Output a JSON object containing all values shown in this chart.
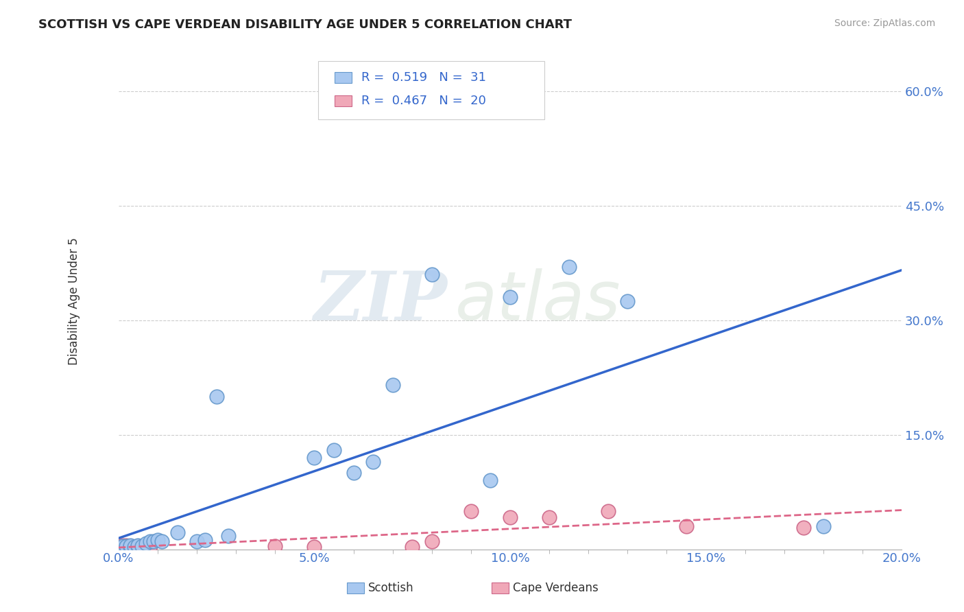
{
  "title": "SCOTTISH VS CAPE VERDEAN DISABILITY AGE UNDER 5 CORRELATION CHART",
  "source": "Source: ZipAtlas.com",
  "ylabel": "Disability Age Under 5",
  "xlim": [
    0.0,
    0.2
  ],
  "ylim": [
    0.0,
    0.65
  ],
  "xtick_labels": [
    "0.0%",
    "",
    "",
    "",
    "",
    "5.0%",
    "",
    "",
    "",
    "",
    "10.0%",
    "",
    "",
    "",
    "",
    "15.0%",
    "",
    "",
    "",
    "",
    "20.0%"
  ],
  "xtick_vals": [
    0.0,
    0.01,
    0.02,
    0.03,
    0.04,
    0.05,
    0.06,
    0.07,
    0.08,
    0.09,
    0.1,
    0.11,
    0.12,
    0.13,
    0.14,
    0.15,
    0.16,
    0.17,
    0.18,
    0.19,
    0.2
  ],
  "xtick_major_labels": [
    "0.0%",
    "5.0%",
    "10.0%",
    "15.0%",
    "20.0%"
  ],
  "xtick_major_vals": [
    0.0,
    0.05,
    0.1,
    0.15,
    0.2
  ],
  "ytick_labels": [
    "15.0%",
    "30.0%",
    "45.0%",
    "60.0%"
  ],
  "ytick_vals": [
    0.15,
    0.3,
    0.45,
    0.6
  ],
  "scottish_color": "#a8c8f0",
  "scottish_edge": "#6699cc",
  "cape_verdean_color": "#f0a8b8",
  "cape_verdean_edge": "#cc6688",
  "trendline_scottish_color": "#3366cc",
  "trendline_cape_verdean_color": "#dd6688",
  "legend_R_scottish": "0.519",
  "legend_N_scottish": "31",
  "legend_R_cape_verdean": "0.467",
  "legend_N_cape_verdean": "20",
  "scottish_x": [
    0.001,
    0.001,
    0.002,
    0.002,
    0.003,
    0.003,
    0.004,
    0.005,
    0.005,
    0.006,
    0.007,
    0.008,
    0.009,
    0.01,
    0.011,
    0.015,
    0.02,
    0.022,
    0.025,
    0.028,
    0.05,
    0.055,
    0.06,
    0.065,
    0.07,
    0.08,
    0.095,
    0.1,
    0.115,
    0.13,
    0.18
  ],
  "scottish_y": [
    0.003,
    0.004,
    0.003,
    0.004,
    0.003,
    0.005,
    0.003,
    0.004,
    0.005,
    0.004,
    0.008,
    0.01,
    0.01,
    0.012,
    0.01,
    0.022,
    0.01,
    0.012,
    0.2,
    0.018,
    0.12,
    0.13,
    0.1,
    0.115,
    0.215,
    0.36,
    0.09,
    0.33,
    0.37,
    0.325,
    0.03
  ],
  "cape_verdean_x": [
    0.001,
    0.001,
    0.002,
    0.002,
    0.003,
    0.004,
    0.005,
    0.006,
    0.007,
    0.008,
    0.04,
    0.05,
    0.075,
    0.08,
    0.09,
    0.1,
    0.11,
    0.125,
    0.145,
    0.175
  ],
  "cape_verdean_y": [
    0.003,
    0.005,
    0.003,
    0.005,
    0.004,
    0.003,
    0.004,
    0.003,
    0.003,
    0.004,
    0.004,
    0.003,
    0.003,
    0.01,
    0.05,
    0.042,
    0.042,
    0.05,
    0.03,
    0.028
  ],
  "watermark_zip": "ZIP",
  "watermark_atlas": "atlas",
  "background_color": "#ffffff",
  "grid_color": "#cccccc",
  "tick_color": "#4477cc",
  "label_color": "#333333"
}
